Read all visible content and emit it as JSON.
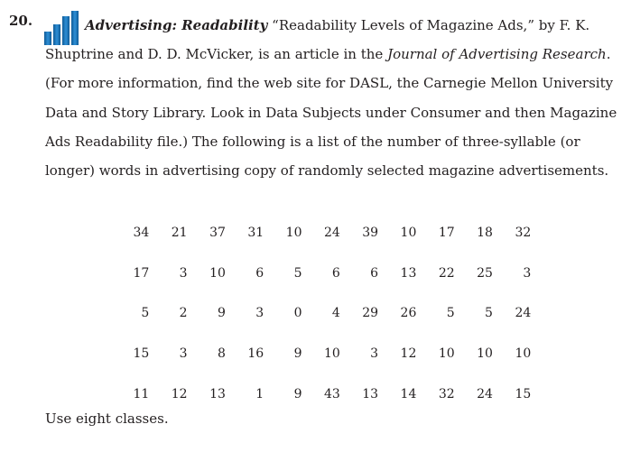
{
  "problem": {
    "number": "20.",
    "topic": "Advertising: Readability",
    "title_quote": "“Readability Levels of Magazine Ads,”",
    "authors_line1": " by F. K.",
    "line2_start": "Shuptrine and D. D. McVicker, is an article in the ",
    "journal": "Journal of Advertising Research",
    "line2_end": ".",
    "lines": [
      "(For more information, find the web site for DASL, the Carnegie Mellon University",
      "Data and Story Library. Look in Data Subjects under Consumer and then Magazine",
      "Ads Readability file.) The following is a list of the number of three-syllable (or",
      "longer) words in advertising copy of randomly selected magazine advertisements."
    ],
    "icon": "data-bar-chart-icon",
    "icon_colors": [
      "#1b75bc",
      "#1b75bc",
      "#1b75bc",
      "#1b75bc"
    ]
  },
  "data_table": {
    "rows": [
      [
        "34",
        "21",
        "37",
        "31",
        "10",
        "24",
        "39",
        "10",
        "17",
        "18",
        "32"
      ],
      [
        "17",
        "3",
        "10",
        "6",
        "5",
        "6",
        "6",
        "13",
        "22",
        "25",
        "3"
      ],
      [
        "5",
        "2",
        "9",
        "3",
        "0",
        "4",
        "29",
        "26",
        "5",
        "5",
        "24"
      ],
      [
        "15",
        "3",
        "8",
        "16",
        "9",
        "10",
        "3",
        "12",
        "10",
        "10",
        "10"
      ],
      [
        "11",
        "12",
        "13",
        "1",
        "9",
        "43",
        "13",
        "14",
        "32",
        "24",
        "15"
      ]
    ]
  },
  "instruction": "Use eight classes."
}
